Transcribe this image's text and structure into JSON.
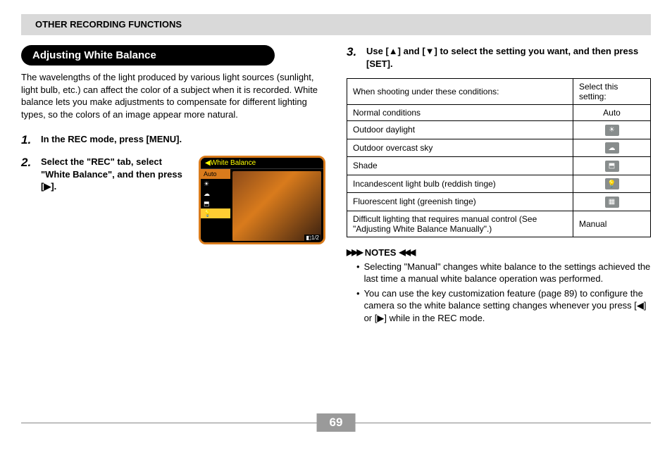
{
  "header": {
    "title": "OTHER RECORDING FUNCTIONS"
  },
  "section": {
    "title": "Adjusting White Balance"
  },
  "intro": "The wavelengths of the light produced by various light sources (sunlight, light bulb, etc.) can affect the color of a subject when it is recorded. White balance lets you make adjustments to compensate for different lighting types, so the colors of an image appear more natural.",
  "steps": {
    "s1": {
      "num": "1.",
      "text": "In the REC mode, press [MENU]."
    },
    "s2": {
      "num": "2.",
      "text": "Select the \"REC\" tab, select \"White Balance\", and then press [▶]."
    },
    "s3": {
      "num": "3.",
      "text": "Use [▲] and [▼] to select the setting you want, and then press [SET]."
    }
  },
  "camera": {
    "title": "◀White Balance",
    "items": [
      "Auto",
      "☀",
      "☁",
      "⬒",
      "💡",
      ""
    ],
    "selectedIndex": 0,
    "highlightIndex": 4,
    "footer": "◧1/2"
  },
  "table": {
    "head": {
      "c1": "When shooting under these conditions:",
      "c2": "Select this setting:"
    },
    "rows": [
      {
        "cond": "Normal conditions",
        "setting": "Auto",
        "icon": false
      },
      {
        "cond": "Outdoor daylight",
        "setting": "☀",
        "icon": true
      },
      {
        "cond": "Outdoor overcast sky",
        "setting": "☁",
        "icon": true
      },
      {
        "cond": "Shade",
        "setting": "⬒",
        "icon": true
      },
      {
        "cond": "Incandescent light bulb (reddish tinge)",
        "setting": "💡",
        "icon": true
      },
      {
        "cond": "Fluorescent light (greenish tinge)",
        "setting": "▦",
        "icon": true
      },
      {
        "cond": "Difficult lighting that requires manual control (See \"Adjusting White Balance Manually\".)",
        "setting": "Manual",
        "icon": false
      }
    ]
  },
  "notes": {
    "heading": "NOTES",
    "arrowR": "▶▶▶",
    "arrowL": "◀◀◀",
    "items": [
      "Selecting \"Manual\" changes white balance to the settings achieved the last time a manual white balance operation was performed.",
      "You can use the key customization feature (page 89) to configure the camera so the white balance setting changes whenever you press [◀] or [▶] while in the REC mode."
    ]
  },
  "pageNumber": "69",
  "colors": {
    "headerBg": "#d9d9d9",
    "pillBg": "#000000",
    "pillText": "#ffffff",
    "cameraBorder": "#d97b1c",
    "iconBg": "#888d8d",
    "pageNumBg": "#9a9a9a"
  }
}
